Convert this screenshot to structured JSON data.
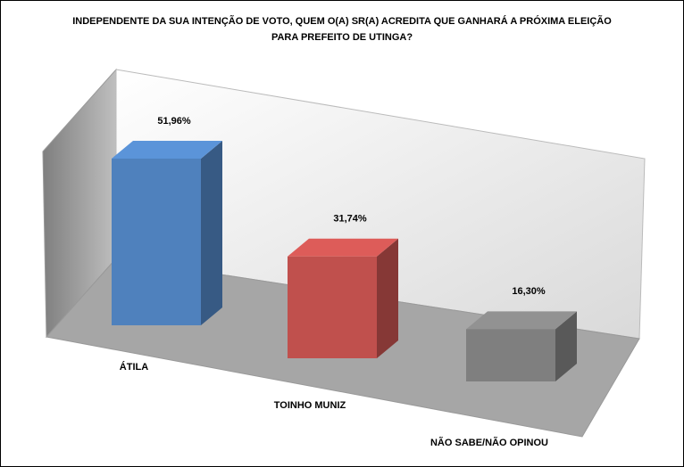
{
  "chart_data": {
    "type": "bar3d",
    "title": [
      "INDEPENDENTE DA SUA INTENÇÃO DE VOTO, QUEM O(A) SR(A) ACREDITA QUE GANHARÁ A PRÓXIMA ELEIÇÃO",
      "PARA PREFEITO DE UTINGA?"
    ],
    "categories": [
      "ÁTILA",
      "TOINHO MUNIZ",
      "NÃO SABE/NÃO OPINOU"
    ],
    "values": [
      51.96,
      31.74,
      16.3
    ],
    "value_labels": [
      "51,96%",
      "31,74%",
      "16,30%"
    ],
    "colors": [
      "#4f81bd",
      "#c0504d",
      "#7f7f7f"
    ]
  }
}
